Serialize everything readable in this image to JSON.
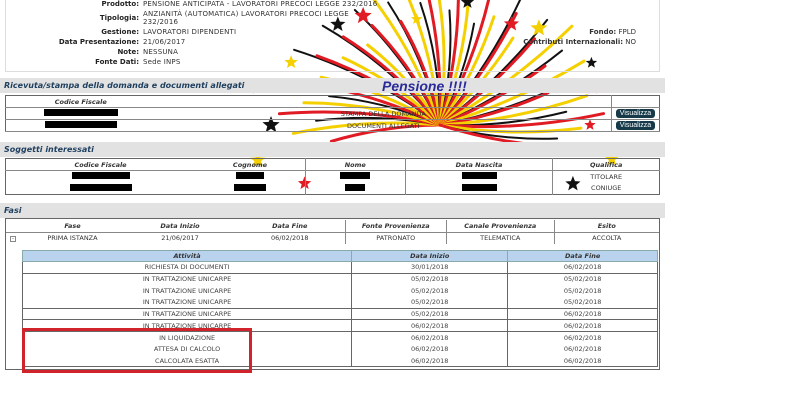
{
  "info": {
    "rows": [
      {
        "label": "Prodotto:",
        "value": "PENSIONE ANTICIPATA - LAVORATORI PRECOCI LEGGE 232/2016"
      },
      {
        "label": "Tipologia:",
        "value": "ANZIANITÀ (AUTOMATICA) LAVORATORI PRECOCI LEGGE",
        "value2": "232/2016"
      },
      {
        "label": "Gestione:",
        "value": "LAVORATORI DIPENDENTI"
      },
      {
        "label": "Data Presentazione:",
        "value": "21/06/2017"
      },
      {
        "label": "Note:",
        "value": "NESSUNA"
      },
      {
        "label": "Fonte Dati:",
        "value": "Sede INPS"
      }
    ],
    "right": [
      {
        "label": "Fondo:",
        "value": "FPLD"
      },
      {
        "label": "Contributi Internazionali:",
        "value": "NO"
      }
    ]
  },
  "ricevuta": {
    "title": "Ricevuta/stampa della domanda e documenti allegati",
    "col": "Codice Fiscale",
    "rows": [
      {
        "desc": "STAMPA DELLA DOMANDA",
        "btn": "Visualizza"
      },
      {
        "desc": "DOCUMENTI ALLEGATI",
        "btn": "Visualizza"
      }
    ]
  },
  "soggetti": {
    "title": "Soggetti interessati",
    "cols": [
      "Codice Fiscale",
      "Cognome",
      "Nome",
      "Data Nascita",
      "Qualifica"
    ],
    "rows": [
      {
        "qualifica": "TITOLARE"
      },
      {
        "qualifica": "CONIUGE"
      }
    ]
  },
  "fasi": {
    "title": "Fasi",
    "cols": [
      "Fase",
      "Data Inizio",
      "Data Fine",
      "Fonte Provenienza",
      "Canale Provenienza",
      "Esito"
    ],
    "row": [
      "PRIMA ISTANZA",
      "21/06/2017",
      "06/02/2018",
      "PATRONATO",
      "TELEMATICA",
      "ACCOLTA"
    ],
    "sub_cols": [
      "Attività",
      "Data Inizio",
      "Data Fine"
    ],
    "sub_rows": [
      [
        "RICHIESTA DI DOCUMENTI",
        "30/01/2018",
        "06/02/2018"
      ],
      [
        "IN TRATTAZIONE UNICARPE",
        "05/02/2018",
        "05/02/2018"
      ],
      [
        "IN TRATTAZIONE UNICARPE",
        "05/02/2018",
        "05/02/2018"
      ],
      [
        "IN TRATTAZIONE UNICARPE",
        "05/02/2018",
        "05/02/2018"
      ],
      [
        "IN TRATTAZIONE UNICARPE",
        "05/02/2018",
        "06/02/2018"
      ],
      [
        "IN TRATTAZIONE UNICARPE",
        "06/02/2018",
        "06/02/2018"
      ],
      [
        "IN LIQUIDAZIONE",
        "06/02/2018",
        "06/02/2018"
      ],
      [
        "ATTESA DI CALCOLO",
        "06/02/2018",
        "06/02/2018"
      ],
      [
        "CALCOLATA ESATTA",
        "06/02/2018",
        "06/02/2018"
      ]
    ]
  },
  "overlay": {
    "text": "Pensione !!!!",
    "colors": [
      "#e01b24",
      "#f5d000",
      "#111111"
    ]
  },
  "highlight_color": "#d0232c"
}
